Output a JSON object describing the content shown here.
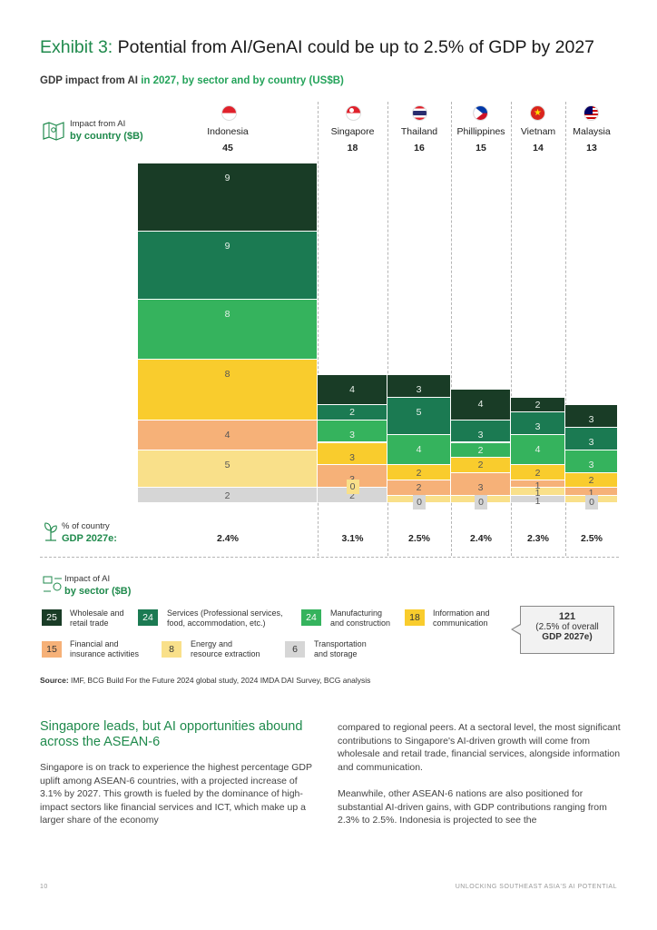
{
  "exhibit": {
    "label": "Exhibit 3:",
    "title": "Potential from AI/GenAI could be up to 2.5% of GDP by 2027"
  },
  "subtitle": {
    "part1": "GDP impact from AI ",
    "part2": "in 2027, by sector and by country (US$B)"
  },
  "country_block": {
    "line1": "Impact from AI",
    "line2": "by country ($B)"
  },
  "countries": [
    {
      "name": "Indonesia",
      "total": "45",
      "gdp_pct": "2.4%"
    },
    {
      "name": "Singapore",
      "total": "18",
      "gdp_pct": "3.1%"
    },
    {
      "name": "Thailand",
      "total": "16",
      "gdp_pct": "2.5%"
    },
    {
      "name": "Phillippines",
      "total": "15",
      "gdp_pct": "2.4%"
    },
    {
      "name": "Vietnam",
      "total": "14",
      "gdp_pct": "2.3%"
    },
    {
      "name": "Malaysia",
      "total": "13",
      "gdp_pct": "2.5%"
    }
  ],
  "pct_block": {
    "line1": "% of country",
    "line2": "GDP 2027e:"
  },
  "sector_block": {
    "line1": "Impact of AI",
    "line2": "by sector ($B)"
  },
  "legend": [
    {
      "value": "25",
      "label1": "Wholesale and",
      "label2": "retail trade"
    },
    {
      "value": "24",
      "label1": "Services (Professional services,",
      "label2": "food, accommodation, etc.)"
    },
    {
      "value": "24",
      "label1": "Manufacturing",
      "label2": "and construction"
    },
    {
      "value": "18",
      "label1": "Information and",
      "label2": "communication"
    },
    {
      "value": "15",
      "label1": "Financial and",
      "label2": "insurance activities"
    },
    {
      "value": "8",
      "label1": "Energy and",
      "label2": "resource extraction"
    },
    {
      "value": "6",
      "label1": "Transportation",
      "label2": "and storage"
    }
  ],
  "total_box": {
    "value": "121",
    "line1": "(2.5% of overall",
    "line2": "GDP 2027e)"
  },
  "source": {
    "label": "Source:",
    "text": " IMF, BCG Build For the Future 2024 global study, 2024 IMDA DAI Survey, BCG analysis"
  },
  "section_heading": "Singapore leads, but AI opportunities abound across the ASEAN-6",
  "para_left": "Singapore is on track to experience the highest percentage GDP uplift among ASEAN-6 countries, with a projected increase of 3.1% by 2027. This growth is fueled by the dominance of high-impact sectors like financial services and ICT, which make up a larger share of the economy",
  "para_right_1": "compared to regional peers. At a sectoral level, the most significant contributions to Singapore's AI-driven growth will come from wholesale and retail trade, financial services, alongside information and communication.",
  "para_right_2": "Meanwhile, other ASEAN-6 nations are also positioned for substantial AI-driven gains, with GDP contributions ranging from 2.3% to 2.5%. Indonesia is projected to see the",
  "footer": {
    "page": "10",
    "title": "UNLOCKING SOUTHEAST ASIA'S AI POTENTIAL"
  },
  "colors": {
    "wholesale": "#193c26",
    "services": "#1b7a52",
    "manufacturing": "#35b35d",
    "ict": "#f9cc2d",
    "financial": "#f6b178",
    "energy": "#f9e08a",
    "transport": "#d6d6d6",
    "accent": "#1f8a4c"
  },
  "chart_data": {
    "type": "bar",
    "subtype": "marimekko (variable-width stacked bar)",
    "title": "GDP impact from AI in 2027, by sector and by country (US$B)",
    "categories": [
      "Indonesia",
      "Singapore",
      "Thailand",
      "Phillippines",
      "Vietnam",
      "Malaysia"
    ],
    "totals": [
      45,
      18,
      16,
      15,
      14,
      13
    ],
    "gdp_pct": [
      "2.4%",
      "3.1%",
      "2.5%",
      "2.4%",
      "2.3%",
      "2.5%"
    ],
    "series": [
      {
        "name": "Wholesale and retail trade",
        "key": "wholesale",
        "values": [
          9,
          4,
          3,
          4,
          2,
          3
        ]
      },
      {
        "name": "Services (Professional services, food, accommodation, etc.)",
        "key": "services",
        "values": [
          9,
          2,
          5,
          3,
          3,
          3
        ]
      },
      {
        "name": "Manufacturing and construction",
        "key": "manufacturing",
        "values": [
          8,
          3,
          4,
          2,
          4,
          3
        ]
      },
      {
        "name": "Information and communication",
        "key": "ict",
        "values": [
          8,
          3,
          2,
          2,
          2,
          2
        ]
      },
      {
        "name": "Financial and insurance activities",
        "key": "financial",
        "values": [
          4,
          3,
          2,
          3,
          1,
          1
        ]
      },
      {
        "name": "Energy and resource extraction",
        "key": "energy",
        "values": [
          5,
          0,
          1,
          1,
          1,
          1
        ]
      },
      {
        "name": "Transportation and storage",
        "key": "transport",
        "values": [
          2,
          2,
          0,
          0,
          1,
          0
        ]
      }
    ],
    "sector_totals": [
      25,
      24,
      24,
      18,
      15,
      8,
      6
    ],
    "overall_total": 121,
    "overall_note": "(2.5% of overall GDP 2027e)"
  }
}
